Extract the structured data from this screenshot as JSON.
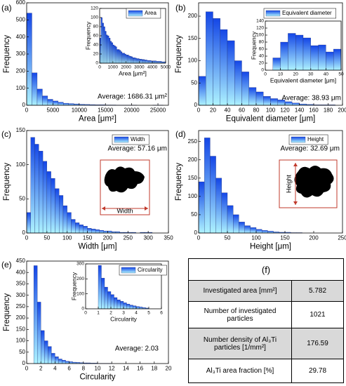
{
  "chart_data": [
    {
      "type": "histogram",
      "label": "(a)",
      "xlabel": "Area [μm²]",
      "ylabel": "Frequency",
      "legend": "Area",
      "annotation": "Average: 1686.31 μm²",
      "color": [
        "#1446e6",
        "#aef3ff"
      ],
      "bins": [
        0,
        1000,
        2000,
        3000,
        4000,
        5000,
        6000,
        7000,
        8000,
        9000,
        10000,
        11000,
        12000,
        13000,
        14000,
        15000,
        16000,
        17000,
        18000,
        19000,
        20000,
        21000,
        22000,
        23000,
        24000,
        25000,
        26000
      ],
      "counts": [
        540,
        190,
        95,
        55,
        35,
        25,
        18,
        12,
        10,
        8,
        6,
        5,
        4,
        3,
        3,
        2,
        2,
        1,
        1,
        1,
        1,
        0,
        0,
        0,
        1,
        1
      ],
      "xlim": [
        0,
        27000
      ],
      "xticks": [
        0,
        5000,
        10000,
        15000,
        20000,
        25000
      ],
      "ylim": [
        0,
        600
      ],
      "yticks": [
        0,
        100,
        200,
        300,
        400,
        500,
        600
      ],
      "inset": {
        "type": "histogram",
        "xlabel": "Area [μm²]",
        "ylabel": "Frequency",
        "color": [
          "#1446e6",
          "#aef3ff"
        ],
        "bins": [
          0,
          100,
          200,
          300,
          400,
          500,
          600,
          700,
          800,
          900,
          1000,
          1100,
          1200,
          1300,
          1400,
          1500,
          1600,
          1700,
          1800,
          1900,
          2000,
          2100,
          2200,
          2300,
          2400,
          2500,
          2600,
          2700,
          2800,
          2900,
          3000,
          3100,
          3200,
          3300,
          3400,
          3500,
          3600,
          3700,
          3800,
          3900,
          4000,
          4100,
          4200,
          4300,
          4400,
          4500,
          4600,
          4700,
          4800,
          4900,
          5000
        ],
        "counts": [
          55,
          100,
          88,
          80,
          70,
          62,
          60,
          55,
          48,
          45,
          40,
          38,
          36,
          30,
          30,
          28,
          25,
          22,
          22,
          20,
          18,
          18,
          16,
          15,
          14,
          12,
          12,
          11,
          10,
          10,
          9,
          9,
          8,
          8,
          7,
          7,
          6,
          6,
          6,
          5,
          5,
          5,
          5,
          4,
          4,
          4,
          4,
          3,
          3,
          3
        ],
        "xlim": [
          0,
          5000
        ],
        "xticks": [
          0,
          1000,
          2000,
          3000,
          4000,
          5000
        ],
        "ylim": [
          0,
          120
        ],
        "yticks": [
          0,
          20,
          40,
          60,
          80,
          100,
          120
        ]
      }
    },
    {
      "type": "histogram",
      "label": "(b)",
      "xlabel": "Equivalent diameter [μm]",
      "ylabel": "Frequency",
      "legend": "Equivalent diameter",
      "annotation": "Average: 38.93 μm",
      "color": [
        "#1446e6",
        "#aef3ff"
      ],
      "bins": [
        0,
        10,
        20,
        30,
        40,
        50,
        60,
        70,
        80,
        90,
        100,
        110,
        120,
        130,
        140,
        150,
        160,
        170,
        180,
        190
      ],
      "counts": [
        65,
        210,
        195,
        170,
        145,
        100,
        75,
        40,
        30,
        20,
        15,
        12,
        8,
        5,
        3,
        2,
        1,
        1,
        1
      ],
      "xlim": [
        0,
        200
      ],
      "xticks": [
        0,
        20,
        40,
        60,
        80,
        100,
        120,
        140,
        160,
        180,
        200
      ],
      "ylim": [
        0,
        230
      ],
      "yticks": [
        0,
        50,
        100,
        150,
        200
      ],
      "inset": {
        "type": "histogram",
        "xlabel": "Equivalent diameter [μm]",
        "ylabel": "Frequency",
        "color": [
          "#1446e6",
          "#aef3ff"
        ],
        "bins": [
          5,
          10,
          15,
          20,
          25,
          30,
          35,
          40,
          45,
          50
        ],
        "counts": [
          35,
          80,
          105,
          100,
          92,
          70,
          72,
          52,
          60
        ],
        "xlim": [
          0,
          50
        ],
        "xticks": [
          0,
          10,
          20,
          30,
          40,
          50
        ],
        "ylim": [
          0,
          140
        ],
        "yticks": [
          0,
          20,
          40,
          60,
          80,
          100,
          120,
          140
        ]
      }
    },
    {
      "type": "histogram",
      "label": "(c)",
      "xlabel": "Width [μm]",
      "ylabel": "Frequency",
      "legend": "Width",
      "annotation": "Average: 57.16 μm",
      "image_label": "Width",
      "color": [
        "#1446e6",
        "#aef3ff"
      ],
      "bins": [
        0,
        10,
        20,
        30,
        40,
        50,
        60,
        70,
        80,
        90,
        100,
        110,
        120,
        130,
        140,
        150,
        160,
        170,
        180,
        190,
        200,
        210,
        220,
        230,
        240,
        250,
        260,
        270,
        280,
        290,
        300,
        310
      ],
      "counts": [
        30,
        140,
        130,
        120,
        105,
        90,
        80,
        65,
        55,
        40,
        30,
        20,
        15,
        12,
        10,
        7,
        6,
        5,
        4,
        3,
        3,
        2,
        2,
        1,
        1,
        1,
        1,
        0,
        1,
        1,
        1
      ],
      "xlim": [
        0,
        350
      ],
      "xticks": [
        0,
        50,
        100,
        150,
        200,
        250,
        300,
        350
      ],
      "ylim": [
        0,
        150
      ],
      "yticks": [
        0,
        50,
        100,
        150
      ]
    },
    {
      "type": "histogram",
      "label": "(d)",
      "xlabel": "Height [μm]",
      "ylabel": "Frequency",
      "legend": "Height",
      "annotation": "Average: 32.69 μm",
      "image_label": "Height",
      "color": [
        "#1446e6",
        "#aef3ff"
      ],
      "bins": [
        0,
        10,
        20,
        30,
        40,
        50,
        60,
        70,
        80,
        90,
        100,
        110,
        120,
        130,
        140,
        150,
        160,
        170,
        180
      ],
      "counts": [
        140,
        260,
        210,
        150,
        110,
        75,
        50,
        30,
        20,
        15,
        10,
        7,
        5,
        3,
        2,
        2,
        1,
        1
      ],
      "xlim": [
        0,
        250
      ],
      "xticks": [
        0,
        50,
        100,
        150,
        200,
        250
      ],
      "ylim": [
        0,
        280
      ],
      "yticks": [
        0,
        50,
        100,
        150,
        200,
        250
      ]
    },
    {
      "type": "histogram",
      "label": "(e)",
      "xlabel": "Circularity",
      "ylabel": "Frequency",
      "legend": "Circularity",
      "annotation": "Average: 2.03",
      "color": [
        "#1446e6",
        "#aef3ff"
      ],
      "bins": [
        1,
        1.5,
        2,
        2.5,
        3,
        3.5,
        4,
        4.5,
        5,
        5.5,
        6,
        6.5,
        7,
        7.5,
        8,
        8.5,
        9,
        9.5,
        10,
        10.5,
        11,
        11.5,
        12
      ],
      "counts": [
        430,
        270,
        145,
        100,
        75,
        45,
        30,
        20,
        15,
        10,
        8,
        6,
        5,
        4,
        3,
        3,
        2,
        2,
        1,
        1,
        1,
        1
      ],
      "xlim": [
        0,
        20
      ],
      "xticks": [
        0,
        2,
        4,
        6,
        8,
        10,
        12,
        14,
        16,
        18,
        20
      ],
      "ylim": [
        0,
        450
      ],
      "yticks": [
        0,
        50,
        100,
        150,
        200,
        250,
        300,
        350,
        400,
        450
      ],
      "inset": {
        "type": "histogram",
        "xlabel": "Circularity",
        "ylabel": "Frequency",
        "color": [
          "#1446e6",
          "#aef3ff"
        ],
        "bins": [
          1,
          1.25,
          1.5,
          1.75,
          2,
          2.25,
          2.5,
          2.75,
          3,
          3.25,
          3.5,
          3.75,
          4,
          4.25,
          4.5,
          4.75,
          5
        ],
        "counts": [
          290,
          205,
          145,
          115,
          95,
          75,
          60,
          50,
          40,
          32,
          25,
          20,
          15,
          12,
          8,
          5
        ],
        "xlim": [
          0,
          6
        ],
        "xticks": [
          0,
          1,
          2,
          3,
          4,
          5,
          6
        ],
        "ylim": [
          0,
          300
        ],
        "yticks": [
          0,
          100,
          200,
          300
        ]
      }
    }
  ],
  "table": {
    "label": "(f)",
    "rows": [
      [
        "Investigated area [mm²]",
        5.782
      ],
      [
        "Number of investigated particles",
        1021
      ],
      [
        "Number density of Al₃Ti particles [1/mm²]",
        176.59
      ],
      [
        "Al₃Ti area fraction [%]",
        29.78
      ]
    ]
  }
}
